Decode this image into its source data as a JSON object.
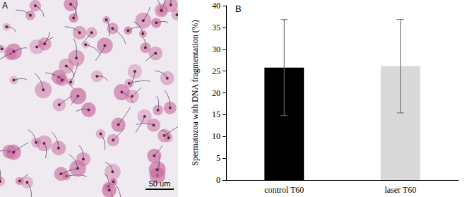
{
  "chart_data": {
    "type": "bar",
    "annotations": [
      "B"
    ],
    "y_label": "Spermatozoa with DNA fragmentation (%)",
    "categories": [
      "control T60",
      "laser T60"
    ],
    "values": [
      25.8,
      26.1
    ],
    "errors": [
      11.0,
      10.7
    ],
    "colors": [
      "#000000",
      "#d9d9d9"
    ],
    "ylim": [
      0,
      40
    ],
    "yticks": [
      0,
      5,
      10,
      15,
      20,
      25,
      30,
      35,
      40
    ],
    "grid": false
  },
  "image_panel": {
    "label": "A",
    "scale_bar_label": "50 um"
  }
}
